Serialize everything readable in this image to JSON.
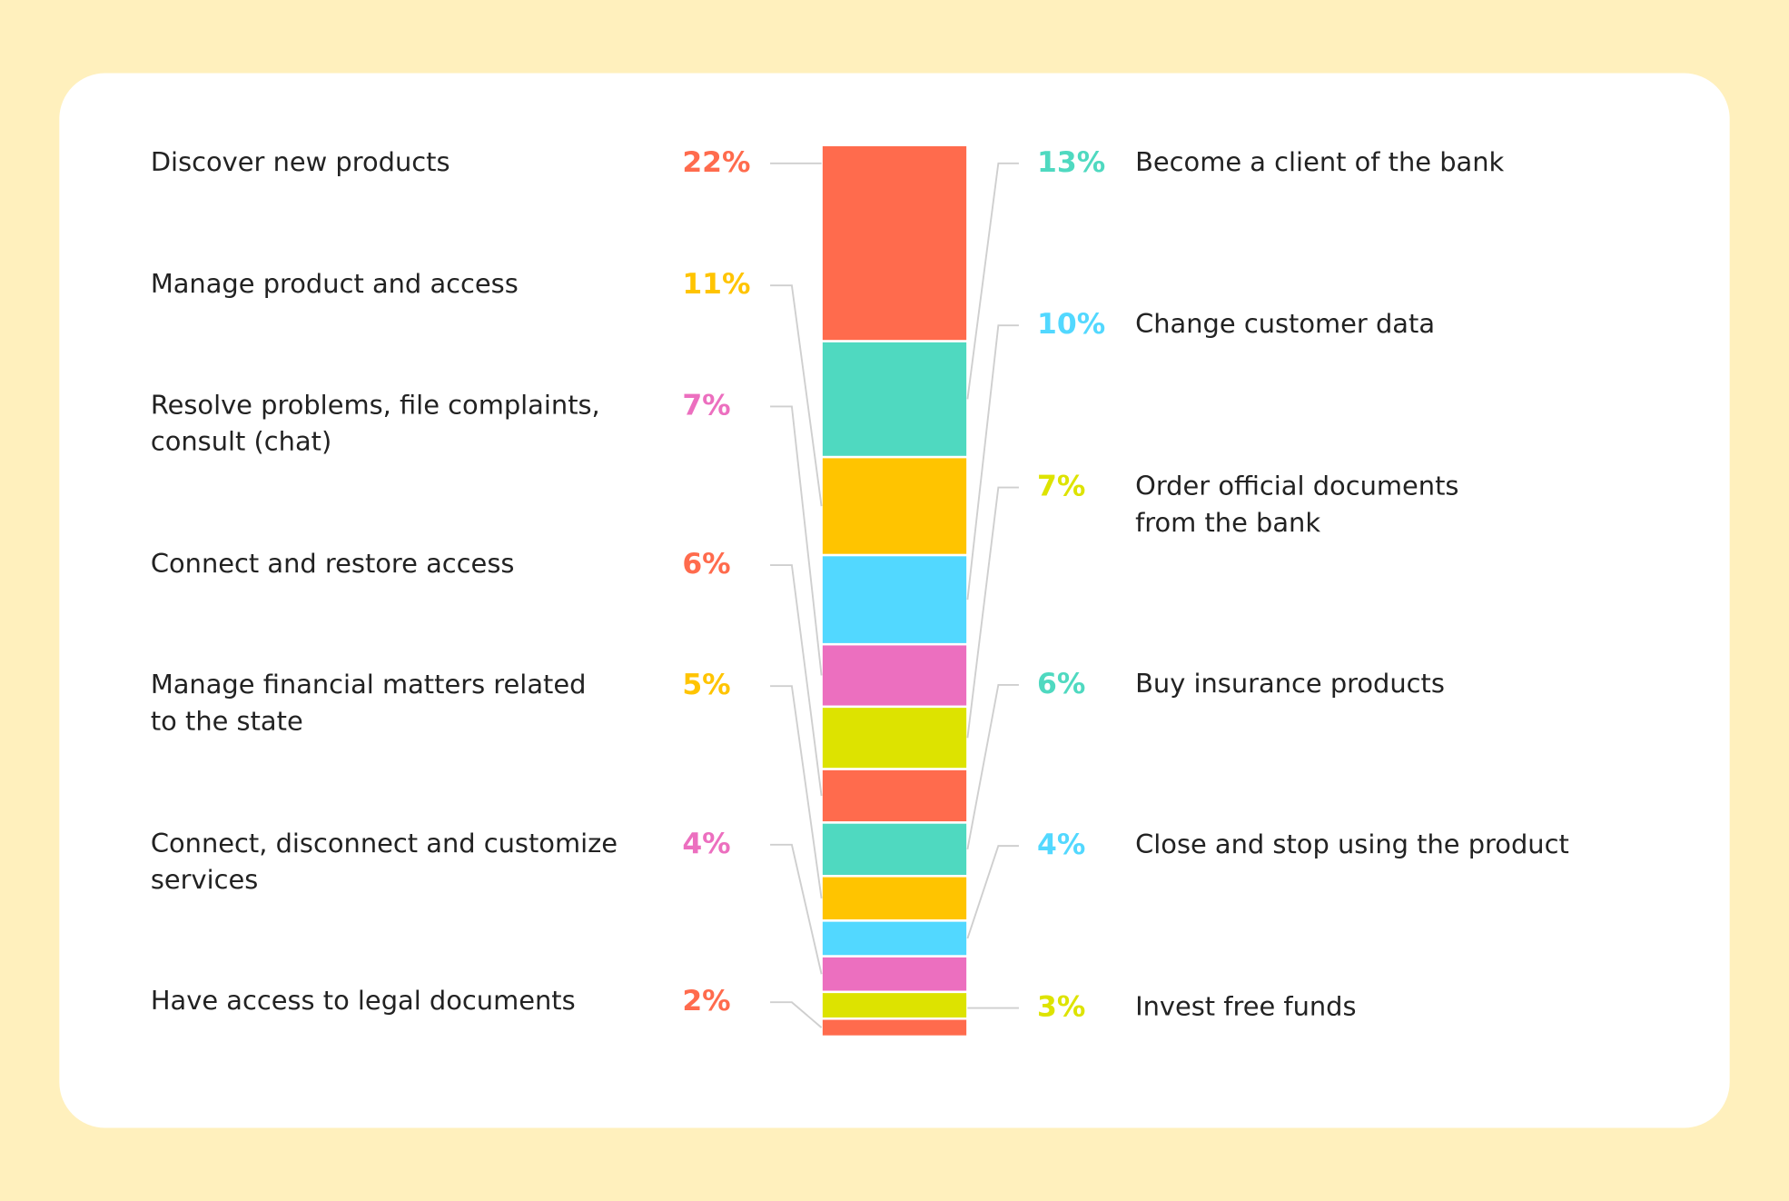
{
  "chart_data": {
    "type": "stacked_bar",
    "series": [
      {
        "name": "Discover new products",
        "color": "#ff6b4d",
        "values": [
          22
        ],
        "value_labels": [
          "22%"
        ]
      },
      {
        "name": "Become a client of the bank",
        "color": "#4fd9c0",
        "values": [
          13
        ],
        "value_labels": [
          "13%"
        ]
      },
      {
        "name": "Manage product and access",
        "color": "#ffc400",
        "values": [
          11
        ],
        "value_labels": [
          "11%"
        ]
      },
      {
        "name": "Change customer data",
        "color": "#52d8ff",
        "values": [
          10
        ],
        "value_labels": [
          "10%"
        ]
      },
      {
        "name": "Resolve problems, file complaints,\nconsult (chat)",
        "color": "#ec6fbf",
        "values": [
          7
        ],
        "value_labels": [
          "7%"
        ]
      },
      {
        "name": "Order official documents\nfrom the bank",
        "color": "#dde300",
        "values": [
          7
        ],
        "value_labels": [
          "7%"
        ]
      },
      {
        "name": "Connect and restore access",
        "color": "#ff6b4d",
        "values": [
          6
        ],
        "value_labels": [
          "6%"
        ]
      },
      {
        "name": "Buy insurance products",
        "color": "#4fd9c0",
        "values": [
          6
        ],
        "value_labels": [
          "6%"
        ]
      },
      {
        "name": "Manage financial matters related\nto the state",
        "color": "#ffc400",
        "values": [
          5
        ],
        "value_labels": [
          "5%"
        ]
      },
      {
        "name": "Close and stop using the product",
        "color": "#52d8ff",
        "values": [
          4
        ],
        "value_labels": [
          "4%"
        ]
      },
      {
        "name": "Connect, disconnect and customize\nservices",
        "color": "#ec6fbf",
        "values": [
          4
        ],
        "value_labels": [
          "4%"
        ]
      },
      {
        "name": "Invest free funds",
        "color": "#dde300",
        "values": [
          3
        ],
        "value_labels": [
          "3%"
        ]
      },
      {
        "name": "Have access to legal documents",
        "color": "#ff6b4d",
        "values": [
          2
        ],
        "value_labels": [
          "2%"
        ]
      }
    ]
  }
}
